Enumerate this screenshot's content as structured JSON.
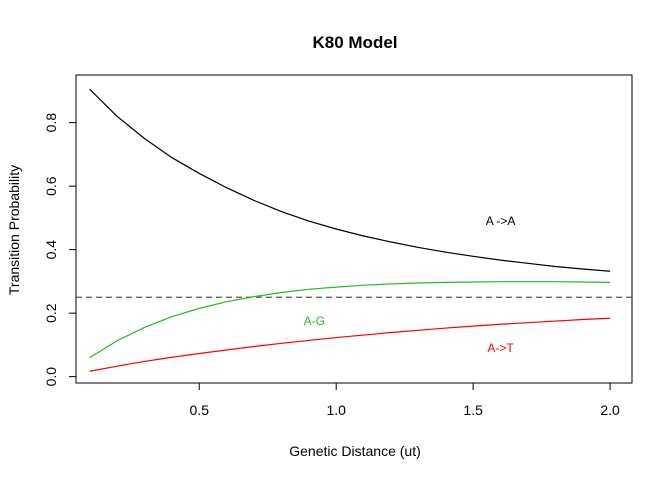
{
  "chart_data": {
    "type": "line",
    "title": "K80 Model",
    "xlabel": "Genetic Distance (ut)",
    "ylabel": "Transition Probability",
    "xlim": [
      0.05,
      2.08
    ],
    "ylim": [
      -0.02,
      0.95
    ],
    "x_ticks": [
      0.5,
      1.0,
      1.5,
      2.0
    ],
    "x_tick_labels": [
      "0.5",
      "1.0",
      "1.5",
      "2.0"
    ],
    "y_ticks": [
      0.0,
      0.2,
      0.4,
      0.6,
      0.8
    ],
    "y_tick_labels": [
      "0.0",
      "0.2",
      "0.4",
      "0.6",
      "0.8"
    ],
    "grid": false,
    "series": [
      {
        "name": "A ->A",
        "color": "#000000",
        "x": [
          0.1,
          0.2,
          0.3,
          0.4,
          0.5,
          0.6,
          0.7,
          0.8,
          0.9,
          1.0,
          1.1,
          1.2,
          1.3,
          1.4,
          1.5,
          1.6,
          1.7,
          1.8,
          1.9,
          2.0
        ],
        "y": [
          0.905,
          0.82,
          0.75,
          0.69,
          0.64,
          0.595,
          0.555,
          0.52,
          0.49,
          0.465,
          0.443,
          0.424,
          0.407,
          0.392,
          0.379,
          0.367,
          0.357,
          0.347,
          0.339,
          0.332
        ]
      },
      {
        "name": "A-G",
        "color": "#22bb22",
        "x": [
          0.1,
          0.2,
          0.3,
          0.4,
          0.5,
          0.6,
          0.7,
          0.8,
          0.9,
          1.0,
          1.1,
          1.2,
          1.3,
          1.4,
          1.5,
          1.6,
          1.7,
          1.8,
          1.9,
          2.0
        ],
        "y": [
          0.06,
          0.113,
          0.155,
          0.189,
          0.215,
          0.236,
          0.252,
          0.265,
          0.275,
          0.282,
          0.288,
          0.292,
          0.295,
          0.297,
          0.298,
          0.299,
          0.299,
          0.299,
          0.298,
          0.297
        ]
      },
      {
        "name": "A->T",
        "color": "#ff0000",
        "x": [
          0.1,
          0.2,
          0.3,
          0.4,
          0.5,
          0.6,
          0.7,
          0.8,
          0.9,
          1.0,
          1.1,
          1.2,
          1.3,
          1.4,
          1.5,
          1.6,
          1.7,
          1.8,
          1.9,
          2.0
        ],
        "y": [
          0.017,
          0.033,
          0.048,
          0.061,
          0.073,
          0.084,
          0.095,
          0.105,
          0.114,
          0.123,
          0.131,
          0.139,
          0.146,
          0.153,
          0.159,
          0.165,
          0.17,
          0.175,
          0.18,
          0.184
        ]
      }
    ],
    "reference_line": {
      "y": 0.25,
      "style": "dashed",
      "color": "#555555"
    },
    "annotations": [
      {
        "text": "A ->A",
        "x": 1.6,
        "y": 0.49,
        "color": "#000000"
      },
      {
        "text": "A-G",
        "x": 0.92,
        "y": 0.175,
        "color": "#22bb22"
      },
      {
        "text": "A->T",
        "x": 1.6,
        "y": 0.09,
        "color": "#ff0000"
      }
    ]
  }
}
